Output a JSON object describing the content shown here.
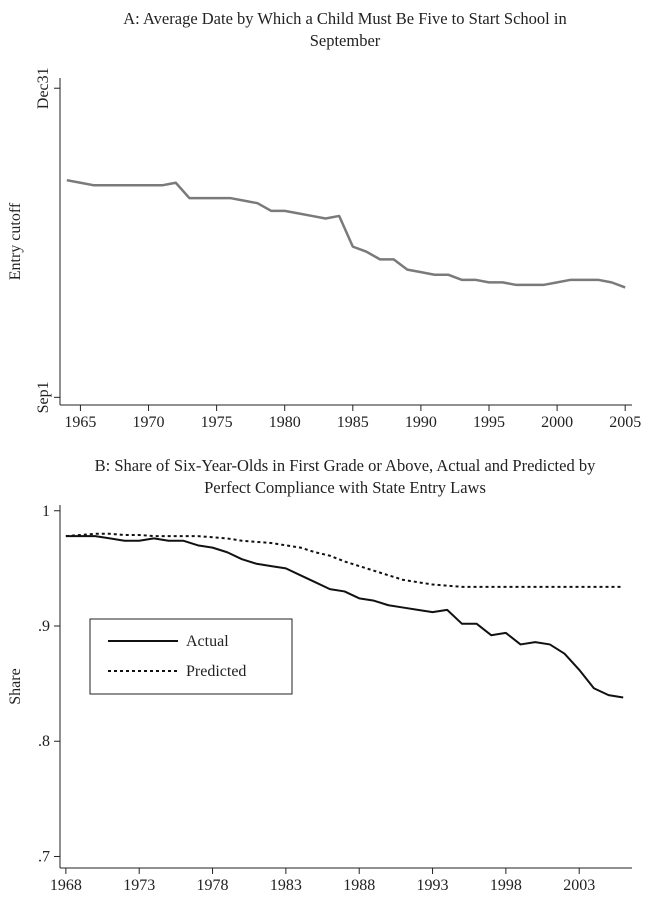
{
  "chart_data": [
    {
      "type": "line",
      "title": "A: Average Date by Which a Child Must Be Five to Start School in September",
      "y_label": "Entry cutoff",
      "x": [
        1964,
        1965,
        1966,
        1967,
        1968,
        1969,
        1970,
        1971,
        1972,
        1973,
        1974,
        1975,
        1976,
        1977,
        1978,
        1979,
        1980,
        1981,
        1982,
        1983,
        1984,
        1985,
        1986,
        1987,
        1988,
        1989,
        1990,
        1991,
        1992,
        1993,
        1994,
        1995,
        1996,
        1997,
        1998,
        1999,
        2000,
        2001,
        2002,
        2003,
        2004,
        2005
      ],
      "values": [
        329,
        328,
        327,
        327,
        327,
        327,
        327,
        327,
        328,
        322,
        322,
        322,
        322,
        321,
        320,
        317,
        317,
        316,
        315,
        314,
        315,
        303,
        301,
        298,
        298,
        294,
        293,
        292,
        292,
        290,
        290,
        289,
        289,
        288,
        288,
        288,
        289,
        290,
        290,
        290,
        289,
        287
      ],
      "color": "#7a7a7a",
      "xlim": [
        1963.5,
        2005.5
      ],
      "ylim": [
        241,
        369
      ],
      "xticks": [
        1965,
        1970,
        1975,
        1980,
        1985,
        1990,
        1995,
        2000,
        2005
      ],
      "yticks": [
        {
          "value": 244,
          "label": "Sep1"
        },
        {
          "value": 365,
          "label": "Dec31"
        }
      ]
    },
    {
      "type": "line",
      "title": "B: Share of Six-Year-Olds in First Grade or Above, Actual and Predicted by Perfect Compliance with State Entry Laws",
      "y_label": "Share",
      "x": [
        1968,
        1969,
        1970,
        1971,
        1972,
        1973,
        1974,
        1975,
        1976,
        1977,
        1978,
        1979,
        1980,
        1981,
        1982,
        1983,
        1984,
        1985,
        1986,
        1987,
        1988,
        1989,
        1990,
        1991,
        1992,
        1993,
        1994,
        1995,
        1996,
        1997,
        1998,
        1999,
        2000,
        2001,
        2002,
        2003,
        2004,
        2005,
        2006
      ],
      "series": [
        {
          "name": "Actual",
          "color": "#111111",
          "linestyle": "solid",
          "values": [
            0.978,
            0.978,
            0.978,
            0.976,
            0.974,
            0.974,
            0.976,
            0.974,
            0.974,
            0.97,
            0.968,
            0.964,
            0.958,
            0.954,
            0.952,
            0.95,
            0.944,
            0.938,
            0.932,
            0.93,
            0.924,
            0.922,
            0.918,
            0.916,
            0.914,
            0.912,
            0.914,
            0.902,
            0.902,
            0.892,
            0.894,
            0.884,
            0.886,
            0.884,
            0.876,
            0.862,
            0.846,
            0.84,
            0.838
          ]
        },
        {
          "name": "Predicted",
          "color": "#111111",
          "linestyle": "dotted",
          "values": [
            0.978,
            0.979,
            0.98,
            0.98,
            0.979,
            0.979,
            0.978,
            0.978,
            0.978,
            0.978,
            0.977,
            0.976,
            0.974,
            0.973,
            0.972,
            0.97,
            0.968,
            0.964,
            0.961,
            0.956,
            0.952,
            0.948,
            0.944,
            0.94,
            0.938,
            0.936,
            0.935,
            0.934,
            0.934,
            0.934,
            0.934,
            0.934,
            0.934,
            0.934,
            0.934,
            0.934,
            0.934,
            0.934,
            0.934
          ]
        }
      ],
      "legend": "center left",
      "xlim": [
        1967.6,
        2006.6
      ],
      "ylim": [
        0.69,
        1.005
      ],
      "xticks": [
        1968,
        1973,
        1978,
        1983,
        1988,
        1993,
        1998,
        2003
      ],
      "yticks": [
        {
          "value": 0.7,
          "label": ".7"
        },
        {
          "value": 0.8,
          "label": ".8"
        },
        {
          "value": 0.9,
          "label": ".9"
        },
        1
      ]
    }
  ]
}
